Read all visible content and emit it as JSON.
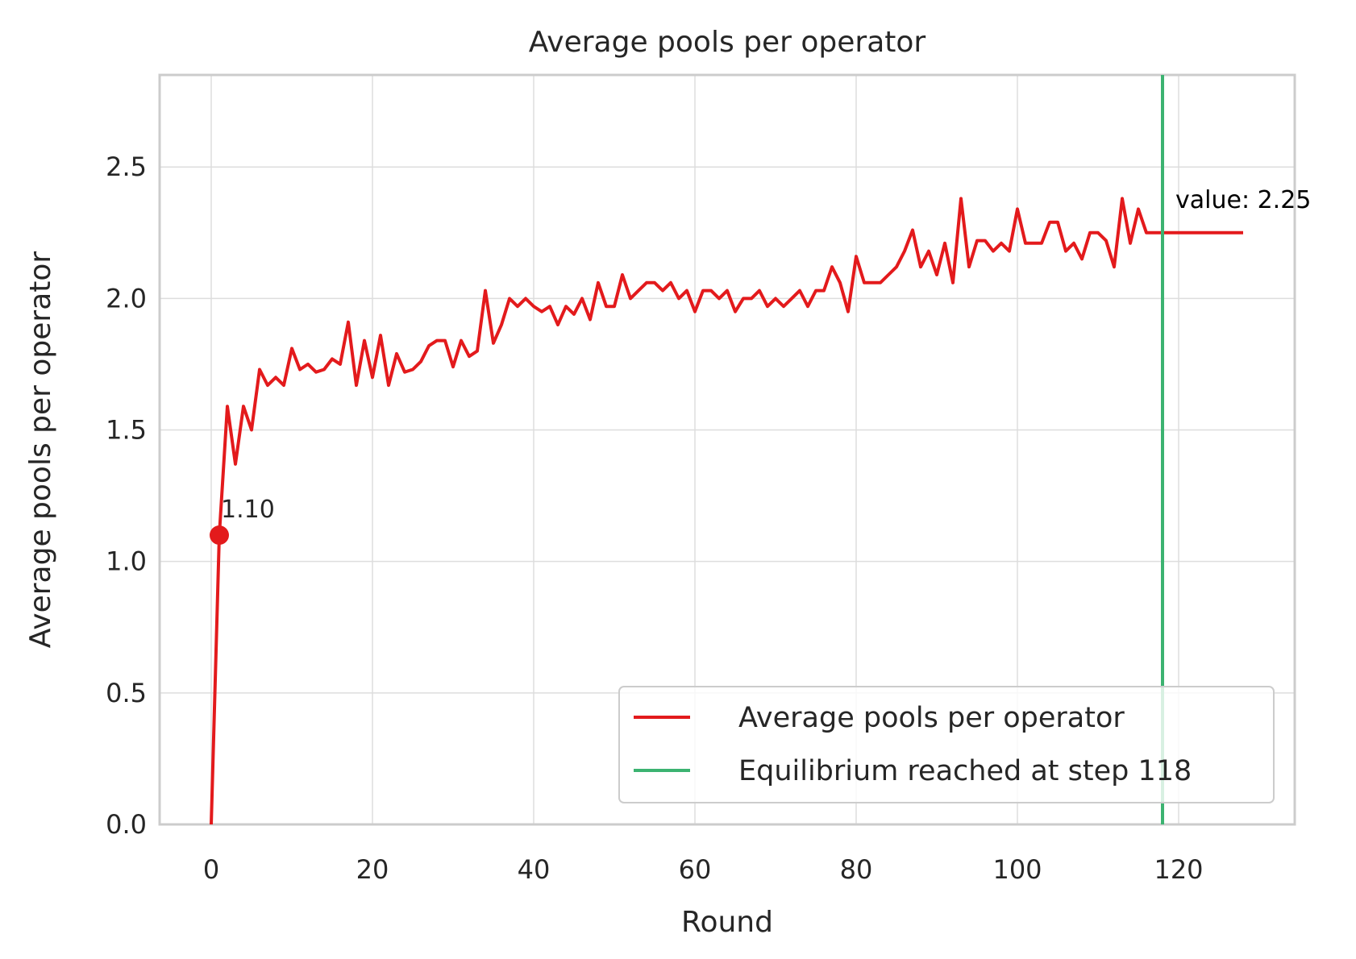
{
  "chart_data": {
    "type": "line",
    "title": "Average pools per operator",
    "xlabel": "Round",
    "ylabel": "Average pools per operator",
    "xlim": [
      -6.4,
      134.4
    ],
    "ylim": [
      0,
      2.85
    ],
    "xticks": [
      0,
      20,
      40,
      60,
      80,
      100,
      120
    ],
    "xtick_labels": [
      "0",
      "20",
      "40",
      "60",
      "80",
      "100",
      "120"
    ],
    "yticks": [
      0,
      0.5,
      1.0,
      1.5,
      2.0,
      2.5
    ],
    "ytick_labels": [
      "0.0",
      "0.5",
      "1.0",
      "1.5",
      "2.0",
      "2.5"
    ],
    "grid": true,
    "series": [
      {
        "name": "Average pools per operator",
        "color": "#e31a1c",
        "x": [
          0,
          1,
          2,
          3,
          4,
          5,
          6,
          7,
          8,
          9,
          10,
          11,
          12,
          13,
          14,
          15,
          16,
          17,
          18,
          19,
          20,
          21,
          22,
          23,
          24,
          25,
          26,
          27,
          28,
          29,
          30,
          31,
          32,
          33,
          34,
          35,
          36,
          37,
          38,
          39,
          40,
          41,
          42,
          43,
          44,
          45,
          46,
          47,
          48,
          49,
          50,
          51,
          52,
          53,
          54,
          55,
          56,
          57,
          58,
          59,
          60,
          61,
          62,
          63,
          64,
          65,
          66,
          67,
          68,
          69,
          70,
          71,
          72,
          73,
          74,
          75,
          76,
          77,
          78,
          79,
          80,
          81,
          82,
          83,
          84,
          85,
          86,
          87,
          88,
          89,
          90,
          91,
          92,
          93,
          94,
          95,
          96,
          97,
          98,
          99,
          100,
          101,
          102,
          103,
          104,
          105,
          106,
          107,
          108,
          109,
          110,
          111,
          112,
          113,
          114,
          115,
          116,
          117,
          118,
          119,
          120,
          121,
          122,
          123,
          124,
          125,
          126,
          127,
          128
        ],
        "values": [
          0.0,
          1.1,
          1.59,
          1.37,
          1.59,
          1.5,
          1.73,
          1.67,
          1.7,
          1.67,
          1.81,
          1.73,
          1.75,
          1.72,
          1.73,
          1.77,
          1.75,
          1.91,
          1.67,
          1.84,
          1.7,
          1.86,
          1.67,
          1.79,
          1.72,
          1.73,
          1.76,
          1.82,
          1.84,
          1.84,
          1.74,
          1.84,
          1.78,
          1.8,
          2.03,
          1.83,
          1.9,
          2.0,
          1.97,
          2.0,
          1.97,
          1.95,
          1.97,
          1.9,
          1.97,
          1.94,
          2.0,
          1.92,
          2.06,
          1.97,
          1.97,
          2.09,
          2.0,
          2.03,
          2.06,
          2.06,
          2.03,
          2.06,
          2.0,
          2.03,
          1.95,
          2.03,
          2.03,
          2.0,
          2.03,
          1.95,
          2.0,
          2.0,
          2.03,
          1.97,
          2.0,
          1.97,
          2.0,
          2.03,
          1.97,
          2.03,
          2.03,
          2.12,
          2.06,
          1.95,
          2.16,
          2.06,
          2.06,
          2.06,
          2.09,
          2.12,
          2.18,
          2.26,
          2.12,
          2.18,
          2.09,
          2.21,
          2.06,
          2.38,
          2.12,
          2.22,
          2.22,
          2.18,
          2.21,
          2.18,
          2.34,
          2.21,
          2.21,
          2.21,
          2.29,
          2.29,
          2.18,
          2.21,
          2.15,
          2.25,
          2.25,
          2.22,
          2.12,
          2.38,
          2.21,
          2.34,
          2.25,
          2.25,
          2.25,
          2.25,
          2.25,
          2.25,
          2.25,
          2.25,
          2.25,
          2.25,
          2.25,
          2.25,
          2.25
        ]
      },
      {
        "name": "Equilibrium reached at step 118",
        "color": "#3cb371",
        "type": "vline",
        "x": 118
      }
    ],
    "annotations": [
      {
        "text": "1.10",
        "x": 1,
        "y": 1.1,
        "marker": true
      },
      {
        "text": "value: 2.25",
        "x": 128,
        "y": 2.25
      }
    ],
    "legend": {
      "position": "lower-right",
      "entries": [
        "Average pools per operator",
        "Equilibrium reached at step 118"
      ]
    }
  }
}
